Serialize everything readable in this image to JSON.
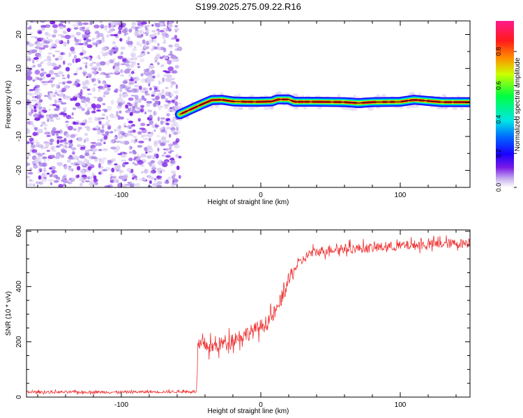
{
  "title": "S199.2025.275.09.22.R16",
  "colors": {
    "spectrum": [
      "#ffffff",
      "#d9ccf2",
      "#a680e6",
      "#7a1ae6",
      "#1a00ff",
      "#0066ff",
      "#00e6e6",
      "#00ff40",
      "#ccff00",
      "#ff8c00",
      "#ff1a1a",
      "#ff1a8c"
    ],
    "snr_line": "#ee3333",
    "ridge": "#000000"
  },
  "chart_data": [
    {
      "type": "heatmap",
      "xlabel": "Height of straight line (km)",
      "ylabel": "Frequency (Hz)",
      "xlim": [
        -168,
        150
      ],
      "ylim": [
        -25,
        24
      ],
      "xticks": [
        -100,
        0,
        100
      ],
      "yticks": [
        -20,
        -10,
        0,
        10,
        20
      ],
      "noise_region_x": [
        -168,
        -58
      ],
      "signal_track": [
        {
          "x": -58,
          "f": -3.5
        },
        {
          "x": -50,
          "f": -2.0
        },
        {
          "x": -42,
          "f": -0.5
        },
        {
          "x": -35,
          "f": 0.7
        },
        {
          "x": -28,
          "f": 0.8
        },
        {
          "x": -20,
          "f": 0.3
        },
        {
          "x": -10,
          "f": 0.2
        },
        {
          "x": 0,
          "f": 0.2
        },
        {
          "x": 8,
          "f": 0.3
        },
        {
          "x": 12,
          "f": 0.9
        },
        {
          "x": 20,
          "f": 0.9
        },
        {
          "x": 24,
          "f": 0.2
        },
        {
          "x": 40,
          "f": 0.2
        },
        {
          "x": 60,
          "f": 0.1
        },
        {
          "x": 70,
          "f": -0.2
        },
        {
          "x": 80,
          "f": 0.1
        },
        {
          "x": 100,
          "f": 0.2
        },
        {
          "x": 110,
          "f": 0.8
        },
        {
          "x": 118,
          "f": 0.5
        },
        {
          "x": 130,
          "f": 0.1
        },
        {
          "x": 150,
          "f": 0.1
        }
      ],
      "colorbar": {
        "label": "Normalized spectral amplitude",
        "range": [
          0,
          0.98
        ],
        "ticks": [
          "0.0",
          "0.2",
          "0.4",
          "0.6",
          "0.8"
        ]
      }
    },
    {
      "type": "line",
      "xlabel": "Height of straight line (km)",
      "ylabel": "SNR (10 * v/v)",
      "xlim": [
        -168,
        150
      ],
      "ylim": [
        0,
        605
      ],
      "xticks": [
        -100,
        0,
        100
      ],
      "yticks": [
        0,
        200,
        400,
        600
      ],
      "series": [
        {
          "name": "SNR",
          "envelope": [
            {
              "x": -168,
              "y": 18
            },
            {
              "x": -100,
              "y": 18
            },
            {
              "x": -50,
              "y": 20
            },
            {
              "x": -46,
              "y": 20
            },
            {
              "x": -45,
              "y": 180
            },
            {
              "x": -40,
              "y": 190
            },
            {
              "x": -35,
              "y": 180
            },
            {
              "x": -25,
              "y": 200
            },
            {
              "x": -15,
              "y": 220
            },
            {
              "x": -5,
              "y": 240
            },
            {
              "x": 5,
              "y": 270
            },
            {
              "x": 12,
              "y": 320
            },
            {
              "x": 18,
              "y": 400
            },
            {
              "x": 25,
              "y": 470
            },
            {
              "x": 35,
              "y": 520
            },
            {
              "x": 50,
              "y": 535
            },
            {
              "x": 80,
              "y": 540
            },
            {
              "x": 110,
              "y": 550
            },
            {
              "x": 150,
              "y": 558
            }
          ]
        }
      ]
    }
  ]
}
